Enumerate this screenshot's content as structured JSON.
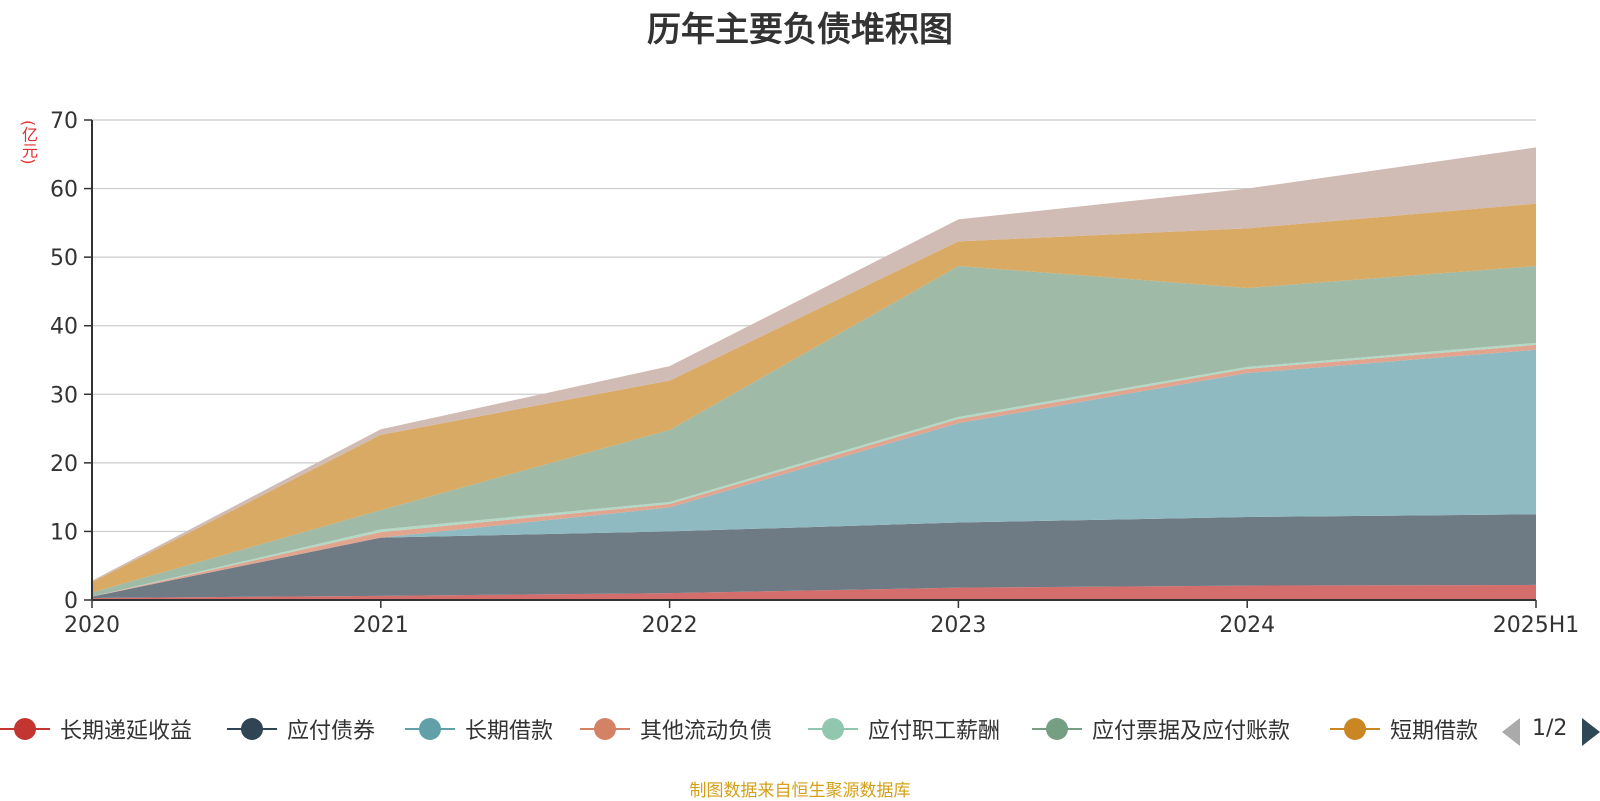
{
  "chart_data": {
    "type": "area",
    "title": "历年主要负债堆积图",
    "unit_label": "(亿元)",
    "x": [
      "2020",
      "2021",
      "2022",
      "2023",
      "2024",
      "2025H1"
    ],
    "ylim": [
      0,
      70
    ],
    "yticks": [
      "0",
      "10",
      "20",
      "30",
      "40",
      "50",
      "60",
      "70"
    ],
    "grid": true,
    "stacked": true,
    "series": [
      {
        "name": "长期递延收益",
        "color": "#c23531",
        "fill": "#d46e6c",
        "values": [
          0.3,
          0.6,
          1.0,
          1.8,
          2.1,
          2.2
        ]
      },
      {
        "name": "应付债券",
        "color": "#2f4554",
        "fill": "#6e7b85",
        "values": [
          0.2,
          8.5,
          9.0,
          9.5,
          10.0,
          10.3
        ]
      },
      {
        "name": "长期借款",
        "color": "#61a0a8",
        "fill": "#90bac1",
        "values": [
          0.0,
          0.0,
          3.5,
          14.5,
          21.0,
          24.0
        ]
      },
      {
        "name": "其他流动负债",
        "color": "#d48265",
        "fill": "#e0a48f",
        "values": [
          0.0,
          0.8,
          0.5,
          0.6,
          0.6,
          0.7
        ]
      },
      {
        "name": "应付职工薪酬",
        "color": "#91c7ae",
        "fill": "#b3d8c6",
        "values": [
          0.0,
          0.4,
          0.3,
          0.3,
          0.3,
          0.3
        ]
      },
      {
        "name": "应付票据及应付账款",
        "color": "#749f83",
        "fill": "#9fbaa7",
        "values": [
          0.6,
          2.8,
          10.5,
          22.0,
          11.5,
          11.2
        ]
      },
      {
        "name": "短期借款",
        "color": "#ca8622",
        "fill": "#d8aa63",
        "values": [
          1.5,
          11.0,
          7.2,
          3.6,
          8.7,
          9.1
        ]
      },
      {
        "name": "",
        "color": "#bda29a",
        "fill": "#d1bbb5",
        "values": [
          0.2,
          0.8,
          2.1,
          3.2,
          5.8,
          8.2
        ]
      }
    ]
  },
  "legend": {
    "page_indicator": "1/2"
  },
  "source_note": "制图数据来自恒生聚源数据库"
}
